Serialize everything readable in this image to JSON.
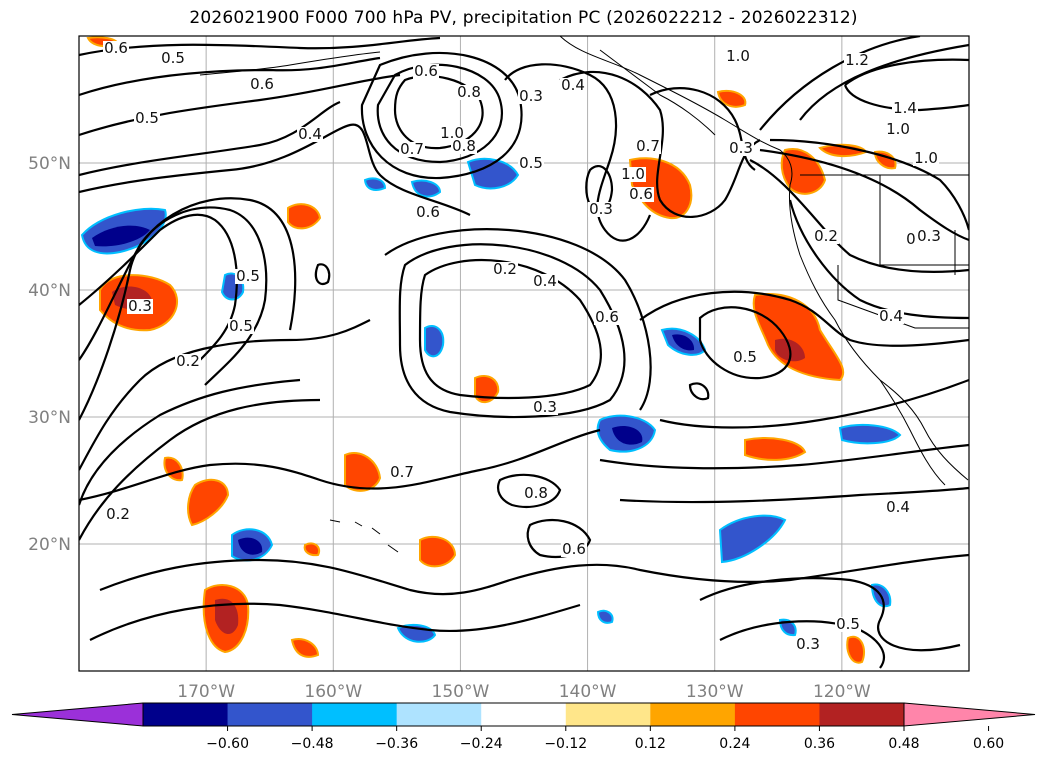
{
  "title": "2026021900 F000 700 hPa PV, precipitation PC (2026022212 - 2026022312)",
  "map": {
    "projection": "PlateCarree",
    "lon_range": [
      -180,
      -110
    ],
    "lat_range": [
      10,
      60
    ],
    "lon_ticks": [
      {
        "lon": -170,
        "label": "170°W"
      },
      {
        "lon": -160,
        "label": "160°W"
      },
      {
        "lon": -150,
        "label": "150°W"
      },
      {
        "lon": -140,
        "label": "140°W"
      },
      {
        "lon": -130,
        "label": "130°W"
      },
      {
        "lon": -120,
        "label": "120°W"
      }
    ],
    "lat_ticks": [
      {
        "lat": 50,
        "label": "50°N"
      },
      {
        "lat": 40,
        "label": "40°N"
      },
      {
        "lat": 30,
        "label": "30°N"
      },
      {
        "lat": 20,
        "label": "20°N"
      }
    ],
    "gridlines": true,
    "contour_labels": [
      "0.6",
      "0.5",
      "0.6",
      "0.5",
      "0.4",
      "0.7",
      "1.0",
      "0.8",
      "0.3",
      "0.5",
      "0.3",
      "0.6",
      "0.7",
      "0.4",
      "1.0",
      "1.2",
      "1.4",
      "1.0",
      "1.0",
      "0.3",
      "0.2",
      "0.4",
      "0.5",
      "0.6",
      "0.2",
      "0.4",
      "0.3",
      "0.7",
      "0.8",
      "0.6",
      "0.4",
      "0.5",
      "0.3",
      "0.3",
      "0.5",
      "0.5",
      "0.2",
      "0.3",
      "0.2",
      "1.0",
      "0.6",
      "0.8",
      "0.3",
      "0.6"
    ]
  },
  "colorbar": {
    "levels": [
      "−0.60",
      "−0.48",
      "−0.36",
      "−0.24",
      "−0.12",
      "0.12",
      "0.24",
      "0.36",
      "0.48",
      "0.60"
    ],
    "colors": [
      "#9b30d9",
      "#00008b",
      "#3355cc",
      "#00bfff",
      "#aee3ff",
      "#ffffff",
      "#ffe68a",
      "#ffa500",
      "#ff4500",
      "#b22222",
      "#ff85aa"
    ],
    "extend": "both"
  }
}
